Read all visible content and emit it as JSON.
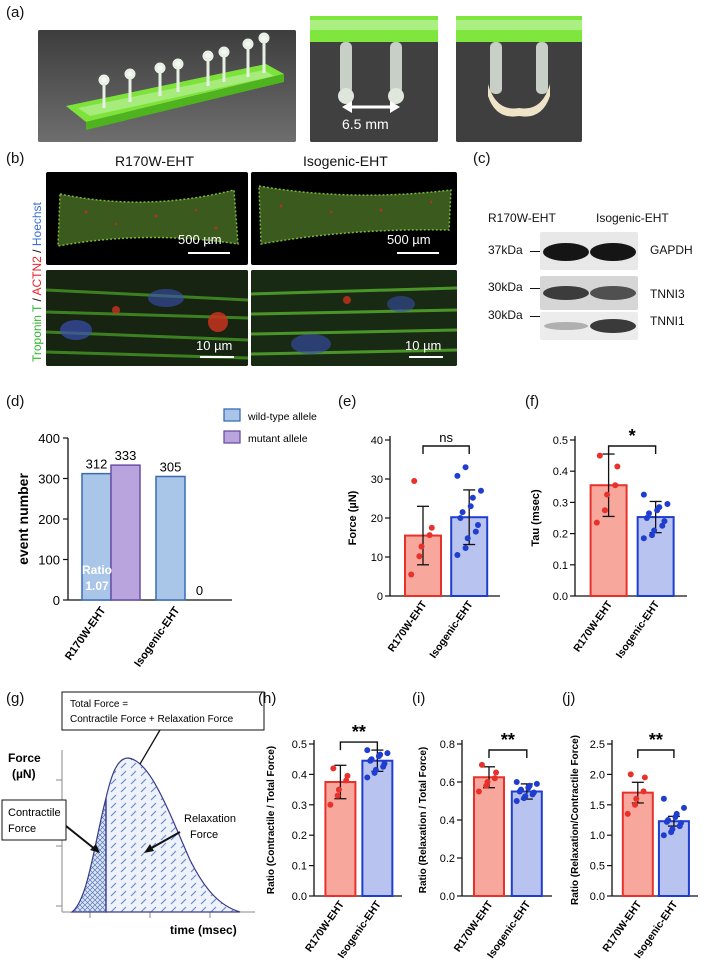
{
  "panel_labels": {
    "a": "(a)",
    "b": "(b)",
    "c": "(c)",
    "d": "(d)",
    "e": "(e)",
    "f": "(f)",
    "g": "(g)",
    "h": "(h)",
    "i": "(i)",
    "j": "(j)"
  },
  "panel_a": {
    "distance_label": "6.5 mm"
  },
  "panel_b": {
    "col1": "R170W-EHT",
    "col2": "Isogenic-EHT",
    "stain_troponin": "Troponin T",
    "stain_sep1": " / ",
    "stain_actn2": "ACTN2",
    "stain_sep2": " / ",
    "stain_hoechst": "Hoechst",
    "scale_top": "500 µm",
    "scale_bottom": "10 µm",
    "colors": {
      "troponin": "#2fb52f",
      "actn2": "#e8212b",
      "hoechst": "#3a6fd8"
    }
  },
  "panel_c": {
    "col1": "R170W-EHT",
    "col2": "Isogenic-EHT",
    "rows": [
      {
        "kda": "37kDa",
        "protein": "GAPDH"
      },
      {
        "kda": "30kDa",
        "protein": "TNNI3"
      },
      {
        "kda": "30kDa",
        "protein": "TNNI1"
      }
    ]
  },
  "panel_g": {
    "ylabel_line1": "Force",
    "ylabel_line2": "(µN)",
    "xlabel": "time (msec)",
    "total_line1": "Total Force =",
    "total_line2": "Contractile Force + Relaxation Force",
    "contractile_line1": "Contractile",
    "contractile_line2": "Force",
    "relaxation_line1": "Relaxation",
    "relaxation_line2": "Force"
  },
  "chart_data": [
    {
      "id": "d",
      "type": "bar",
      "ylabel": "event number",
      "ylim": [
        0,
        400
      ],
      "yticks": [
        0,
        100,
        200,
        300,
        400
      ],
      "categories": [
        "R170W-EHT",
        "Isogenic-EHT"
      ],
      "series": [
        {
          "name": "wild-type allele",
          "color": "#a9c5e8",
          "edge": "#3a6cb5",
          "values": [
            312,
            305
          ]
        },
        {
          "name": "mutant allele",
          "color": "#b9a4de",
          "edge": "#6b4fa6",
          "values": [
            333,
            0
          ]
        }
      ],
      "value_labels": [
        "312",
        "333",
        "305",
        "0"
      ],
      "annotation": {
        "line1": "Ratio",
        "line2": "1.07"
      },
      "legend_position": "top-right"
    },
    {
      "id": "e",
      "type": "bar",
      "ylabel": "Force (µN)",
      "ylim": [
        0,
        40
      ],
      "yticks": [
        0,
        10,
        20,
        30,
        40
      ],
      "categories": [
        "R170W-EHT",
        "Isogenic-EHT"
      ],
      "values": [
        15.5,
        20.2
      ],
      "errors": [
        7.5,
        7.0
      ],
      "points": [
        [
          5.5,
          10.2,
          12.7,
          15.6,
          17.5,
          29.5
        ],
        [
          10.5,
          12.3,
          14.8,
          16.5,
          18.2,
          20.0,
          21.5,
          23.0,
          25.2,
          27.0,
          30.8,
          33.0
        ]
      ],
      "significance": "ns"
    },
    {
      "id": "f",
      "type": "bar",
      "ylabel": "Tau (msec)",
      "ylim": [
        0,
        0.5
      ],
      "yticks": [
        0.0,
        0.1,
        0.2,
        0.3,
        0.4,
        0.5
      ],
      "categories": [
        "R170W-EHT",
        "Isogenic-EHT"
      ],
      "values": [
        0.355,
        0.253
      ],
      "errors": [
        0.1,
        0.05
      ],
      "points": [
        [
          0.235,
          0.275,
          0.325,
          0.355,
          0.415,
          0.45
        ],
        [
          0.185,
          0.195,
          0.21,
          0.225,
          0.24,
          0.25,
          0.265,
          0.275,
          0.285,
          0.295,
          0.325
        ]
      ],
      "significance": "*"
    },
    {
      "id": "h",
      "type": "bar",
      "ylabel": "Ratio (Contractile / Total Force)",
      "ylim": [
        0,
        0.5
      ],
      "yticks": [
        0.0,
        0.1,
        0.2,
        0.3,
        0.4,
        0.5
      ],
      "categories": [
        "R170W-EHT",
        "Isogenic-EHT"
      ],
      "values": [
        0.375,
        0.445
      ],
      "errors": [
        0.055,
        0.035
      ],
      "points": [
        [
          0.3,
          0.33,
          0.35,
          0.38,
          0.395,
          0.42
        ],
        [
          0.39,
          0.405,
          0.415,
          0.425,
          0.435,
          0.445,
          0.45,
          0.46,
          0.465,
          0.47,
          0.48
        ]
      ],
      "significance": "**"
    },
    {
      "id": "i",
      "type": "bar",
      "ylabel": "Ratio (Relaxation / Total Force)",
      "ylim": [
        0,
        0.8
      ],
      "yticks": [
        0.0,
        0.2,
        0.4,
        0.6,
        0.8
      ],
      "categories": [
        "R170W-EHT",
        "Isogenic-EHT"
      ],
      "values": [
        0.625,
        0.55
      ],
      "errors": [
        0.055,
        0.04
      ],
      "points": [
        [
          0.55,
          0.58,
          0.6,
          0.62,
          0.65,
          0.69
        ],
        [
          0.5,
          0.515,
          0.525,
          0.535,
          0.545,
          0.55,
          0.56,
          0.57,
          0.58,
          0.59,
          0.6
        ]
      ],
      "significance": "**"
    },
    {
      "id": "j",
      "type": "bar",
      "ylabel": "Ratio (Relaxation/Contractile Force)",
      "ylim": [
        0,
        2.5
      ],
      "yticks": [
        0.0,
        0.5,
        1.0,
        1.5,
        2.0,
        2.5
      ],
      "categories": [
        "R170W-EHT",
        "Isogenic-EHT"
      ],
      "values": [
        1.7,
        1.23
      ],
      "errors": [
        0.17,
        0.08
      ],
      "points": [
        [
          1.35,
          1.5,
          1.6,
          1.72,
          1.95,
          2.0
        ],
        [
          1.0,
          1.05,
          1.1,
          1.15,
          1.2,
          1.22,
          1.25,
          1.3,
          1.35,
          1.45,
          1.6
        ]
      ],
      "significance": "**"
    }
  ]
}
